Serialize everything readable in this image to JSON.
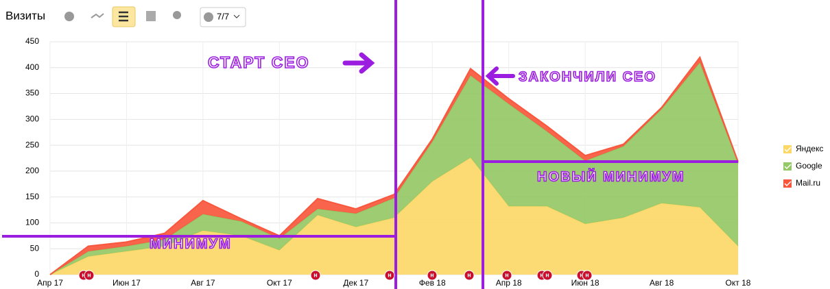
{
  "chart_data": {
    "type": "stacked_area",
    "title": "Визиты",
    "categories": [
      "Апр 17",
      null,
      "Июн 17",
      null,
      "Авг 17",
      null,
      "Окт 17",
      null,
      "Дек 17",
      null,
      "Фев 18",
      null,
      "Апр 18",
      null,
      "Июн 18",
      null,
      "Авг 18",
      null,
      "Окт 18"
    ],
    "series": [
      {
        "name": "Яндекс",
        "color": "#fdd868",
        "values": [
          0,
          35,
          45,
          55,
          85,
          75,
          47,
          115,
          92,
          110,
          180,
          226,
          132,
          132,
          98,
          110,
          138,
          130,
          55
        ]
      },
      {
        "name": "Google",
        "color": "#95c866",
        "values": [
          0,
          10,
          10,
          13,
          32,
          28,
          23,
          12,
          26,
          38,
          77,
          159,
          198,
          145,
          122,
          138,
          182,
          280,
          160
        ]
      },
      {
        "name": "Mail.ru",
        "color": "#f9573d",
        "values": [
          0,
          10,
          8,
          12,
          26,
          5,
          5,
          20,
          9,
          7,
          5,
          13,
          10,
          10,
          10,
          4,
          3,
          10,
          3
        ]
      }
    ],
    "ylim": [
      0,
      450
    ],
    "yticks": [
      0,
      50,
      100,
      150,
      200,
      250,
      300,
      350,
      400,
      450
    ],
    "grid": true,
    "legend": "right",
    "annotations": [
      "СТАРТ СЕО",
      "ЗАКОНЧИЛИ СЕО",
      "НОВЫЙ МИНИМУМ",
      "МИНИМУМ"
    ],
    "event_marker": "н"
  },
  "toolbar": {
    "counter": "7/7"
  }
}
